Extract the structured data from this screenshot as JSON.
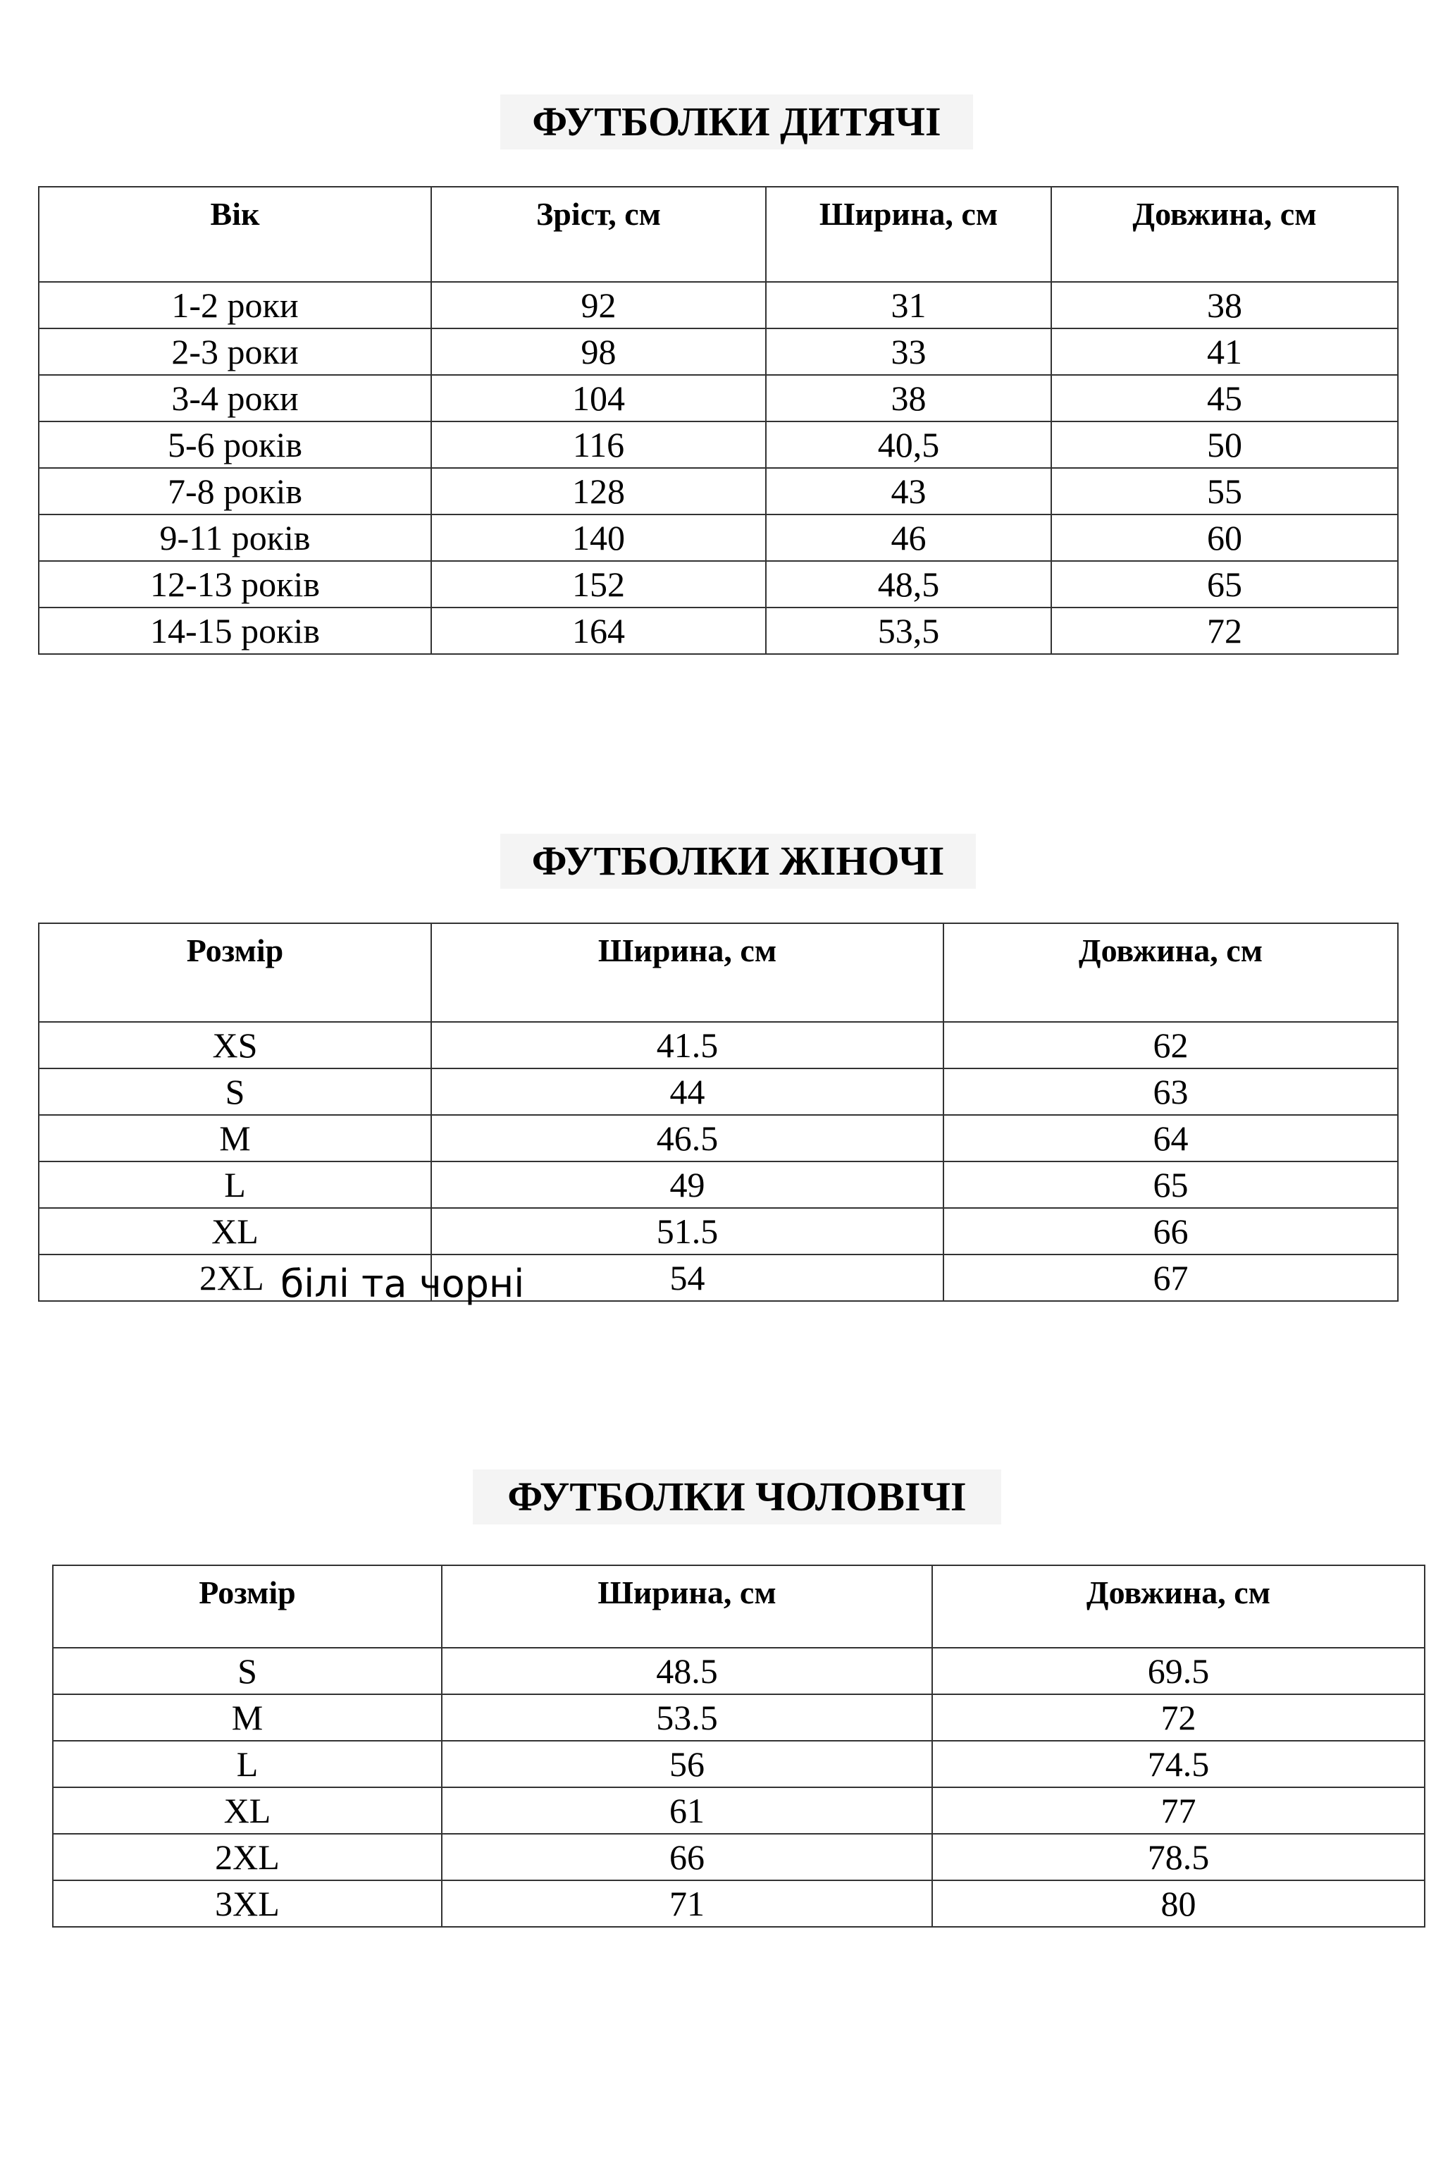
{
  "kids": {
    "title": "ФУТБОЛКИ ДИТЯЧІ",
    "headers": [
      "Вік",
      "Зріст, см",
      "Ширина, см",
      "Довжина, см"
    ],
    "rows": [
      [
        "1-2 роки",
        "92",
        "31",
        "38"
      ],
      [
        "2-3 роки",
        "98",
        "33",
        "41"
      ],
      [
        "3-4 роки",
        "104",
        "38",
        "45"
      ],
      [
        "5-6 років",
        "116",
        "40,5",
        "50"
      ],
      [
        "7-8 років",
        "128",
        "43",
        "55"
      ],
      [
        "9-11 років",
        "140",
        "46",
        "60"
      ],
      [
        "12-13 років",
        "152",
        "48,5",
        "65"
      ],
      [
        "14-15 років",
        "164",
        "53,5",
        "72"
      ]
    ]
  },
  "women": {
    "title": "ФУТБОЛКИ ЖІНОЧІ",
    "headers": [
      "Розмір",
      "Ширина, см",
      "Довжина, см"
    ],
    "rows": [
      [
        "XS",
        "41.5",
        "62"
      ],
      [
        "S",
        "44",
        "63"
      ],
      [
        "M",
        "46.5",
        "64"
      ],
      [
        "L",
        "49",
        "65"
      ],
      [
        "XL",
        "51.5",
        "66"
      ],
      [
        "2XL",
        "54",
        "67"
      ]
    ],
    "note": "білі та чорні"
  },
  "men": {
    "title": "ФУТБОЛКИ ЧОЛОВІЧІ",
    "headers": [
      "Розмір",
      "Ширина, см",
      "Довжина, см"
    ],
    "rows": [
      [
        "S",
        "48.5",
        "69.5"
      ],
      [
        "M",
        "53.5",
        "72"
      ],
      [
        "L",
        "56",
        "74.5"
      ],
      [
        "XL",
        "61",
        "77"
      ],
      [
        "2XL",
        "66",
        "78.5"
      ],
      [
        "3XL",
        "71",
        "80"
      ]
    ]
  }
}
